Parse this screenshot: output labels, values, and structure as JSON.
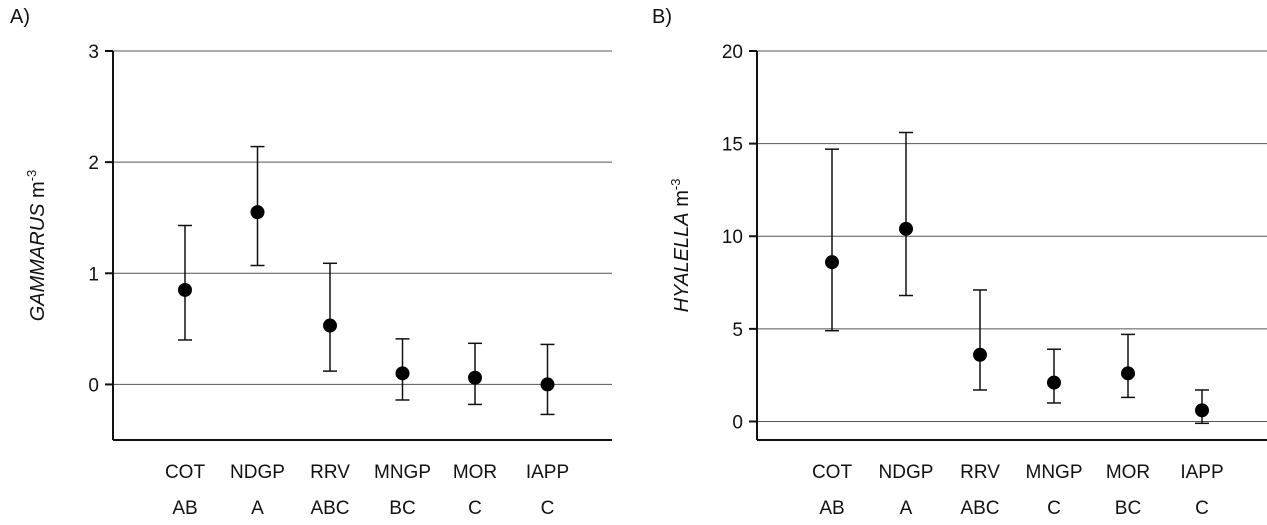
{
  "chart_data": [
    {
      "type": "scatter",
      "panel_label": "A)",
      "ylabel_italic": "GAMMARUS",
      "ylabel_unit": " m",
      "ylabel_exp": "-3",
      "ylim": [
        -0.5,
        3
      ],
      "yticks": [
        0,
        1,
        2,
        3
      ],
      "grid": true,
      "categories": [
        "COT",
        "NDGP",
        "RRV",
        "MNGP",
        "MOR",
        "IAPP"
      ],
      "groups": [
        "AB",
        "A",
        "ABC",
        "BC",
        "C",
        "C"
      ],
      "values": [
        0.85,
        1.55,
        0.53,
        0.1,
        0.06,
        0.0
      ],
      "lower": [
        0.4,
        1.07,
        0.12,
        -0.14,
        -0.18,
        -0.27
      ],
      "upper": [
        1.43,
        2.14,
        1.09,
        0.41,
        0.37,
        0.36
      ]
    },
    {
      "type": "scatter",
      "panel_label": "B)",
      "ylabel_italic": "HYALELLA",
      "ylabel_unit": " m",
      "ylabel_exp": "-3",
      "ylim": [
        -1,
        20
      ],
      "yticks": [
        0,
        5,
        10,
        15,
        20
      ],
      "grid": true,
      "categories": [
        "COT",
        "NDGP",
        "RRV",
        "MNGP",
        "MOR",
        "IAPP"
      ],
      "groups": [
        "AB",
        "A",
        "ABC",
        "C",
        "BC",
        "C"
      ],
      "values": [
        8.6,
        10.4,
        3.6,
        2.1,
        2.6,
        0.6
      ],
      "lower": [
        4.9,
        6.8,
        1.7,
        1.0,
        1.3,
        -0.1
      ],
      "upper": [
        14.7,
        15.6,
        7.1,
        3.9,
        4.7,
        1.7
      ]
    }
  ]
}
